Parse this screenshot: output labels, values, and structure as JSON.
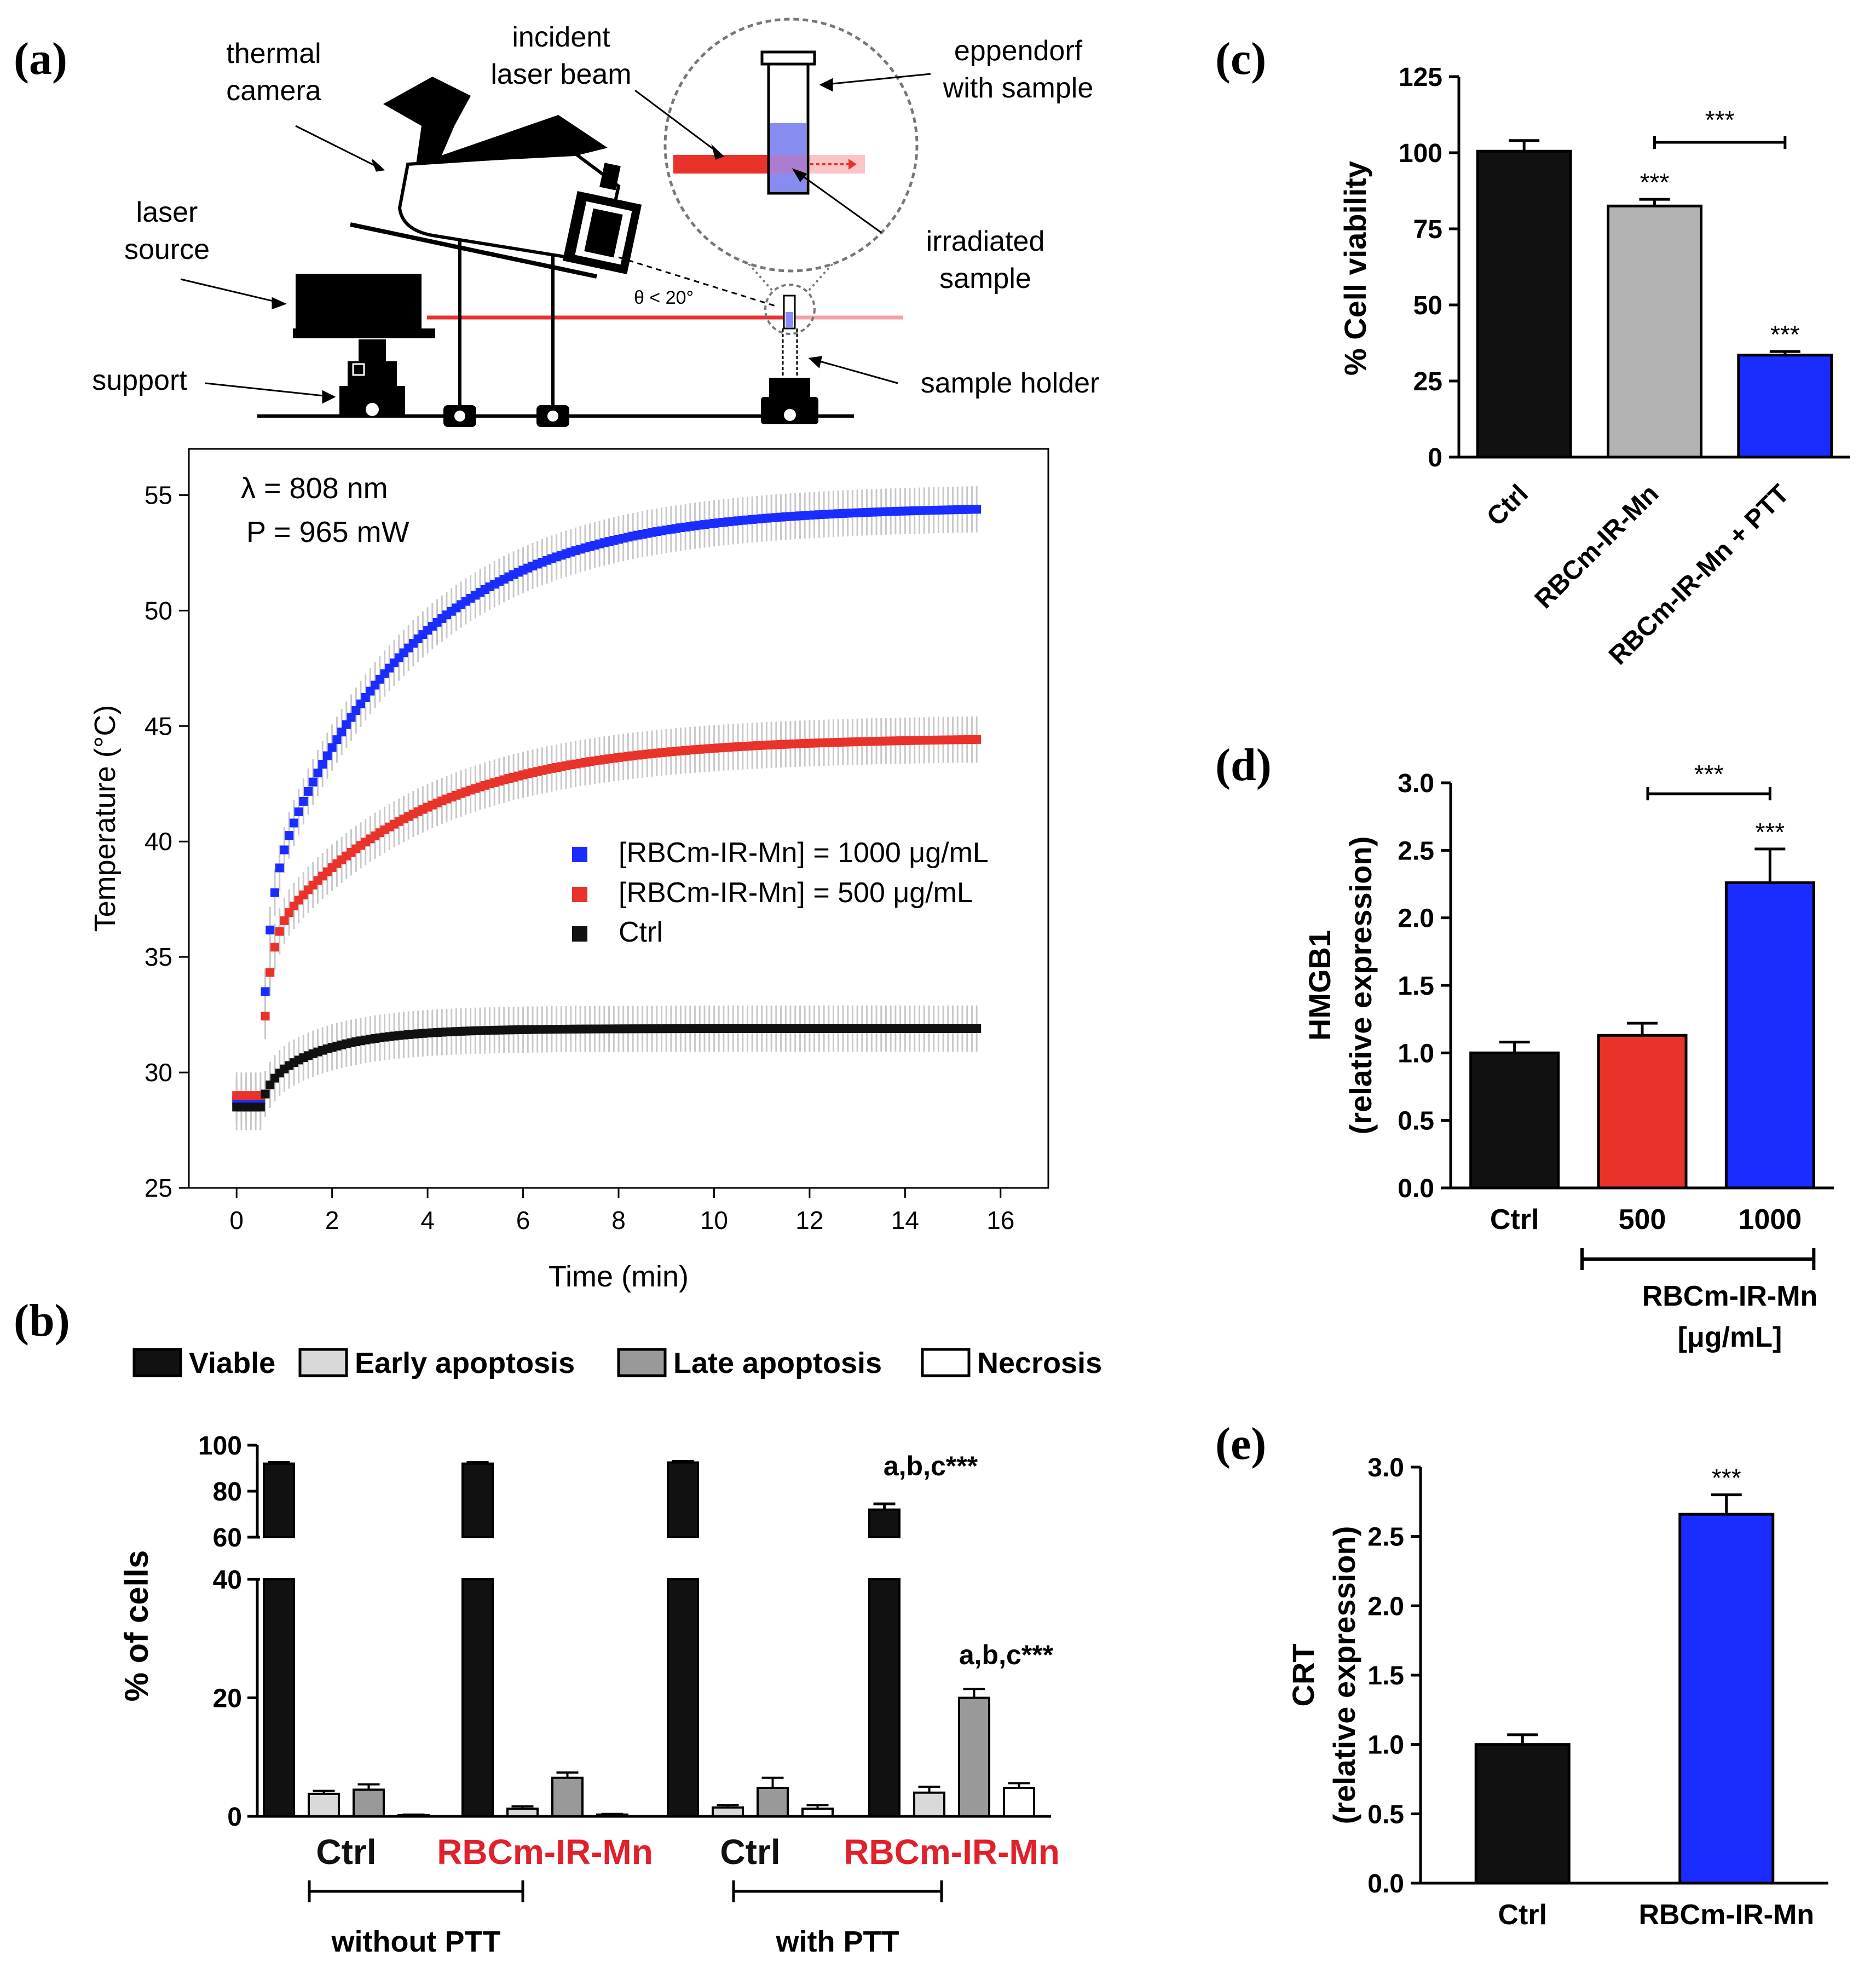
{
  "panels": {
    "a": {
      "label": "(a)",
      "setup": {
        "thermal_camera": [
          "thermal",
          "camera"
        ],
        "incident_laser_beam": [
          "incident",
          "laser beam"
        ],
        "eppendorf": [
          "eppendorf",
          "with sample"
        ],
        "laser_source": [
          "laser",
          "source"
        ],
        "irradiated_sample": [
          "irradiated",
          "sample"
        ],
        "support": "support",
        "sample_holder": "sample holder",
        "angle": "θ < 20°"
      },
      "wavelength": "λ = 808 nm",
      "power": "P = 965 mW"
    },
    "b": {
      "label": "(b)"
    },
    "c": {
      "label": "(c)"
    },
    "d": {
      "label": "(d)"
    },
    "e": {
      "label": "(e)"
    }
  },
  "colors": {
    "black": "#111111",
    "light_gray": "#d9d9d9",
    "mid_gray": "#999999",
    "gray_c": "#b3b3b3",
    "blue": "#1a2cff",
    "red": "#e8322a",
    "errbar": "#c8c8c8",
    "red_text": "#e0202a"
  },
  "chart_data": [
    {
      "id": "a",
      "type": "scatter",
      "xlabel": "Time (min)",
      "ylabel": "Temperature (°C)",
      "xlim": [
        -1,
        17
      ],
      "ylim": [
        25,
        57
      ],
      "xticks": [
        0,
        2,
        4,
        6,
        8,
        10,
        12,
        14,
        16
      ],
      "yticks": [
        25,
        30,
        35,
        40,
        45,
        50,
        55
      ],
      "series": [
        {
          "name": "[RBCm-IR-Mn] = 1000 μg/mL",
          "color": "#1a2cff",
          "baseline": 28.8,
          "plateau": 54.5,
          "tau": 3.0,
          "points": [
            [
              0,
              28.8
            ],
            [
              0.5,
              28.8
            ],
            [
              0.8,
              36.5
            ],
            [
              1,
              38.5
            ],
            [
              2,
              43.5
            ],
            [
              3,
              46.7
            ],
            [
              4,
              48.8
            ],
            [
              5,
              50.3
            ],
            [
              6,
              51.3
            ],
            [
              8,
              52.6
            ],
            [
              10,
              53.2
            ],
            [
              11,
              53.4
            ],
            [
              12,
              53.7
            ],
            [
              14,
              53.9
            ],
            [
              15.5,
              54.2
            ]
          ]
        },
        {
          "name": "[RBCm-IR-Mn] = 500 μg/mL",
          "color": "#e8322a",
          "baseline": 29.0,
          "plateau": 44.5,
          "tau": 3.2,
          "points": [
            [
              0,
              29.0
            ],
            [
              0.5,
              29.0
            ],
            [
              0.8,
              35.0
            ],
            [
              1,
              36.0
            ],
            [
              2,
              38.5
            ],
            [
              3,
              40.2
            ],
            [
              4,
              41.4
            ],
            [
              6,
              43.0
            ],
            [
              8,
              43.7
            ],
            [
              10,
              43.9
            ],
            [
              12,
              44.1
            ],
            [
              14,
              44.1
            ],
            [
              15.5,
              44.2
            ]
          ]
        },
        {
          "name": "Ctrl",
          "color": "#111111",
          "baseline": 28.5,
          "plateau": 31.9,
          "points": [
            [
              0,
              28.5
            ],
            [
              0.5,
              28.5
            ],
            [
              0.7,
              29.6
            ],
            [
              1,
              30.0
            ],
            [
              2,
              30.7
            ],
            [
              4,
              31.2
            ],
            [
              6,
              31.4
            ],
            [
              8,
              31.6
            ],
            [
              10,
              31.7
            ],
            [
              12,
              31.8
            ],
            [
              14,
              31.8
            ],
            [
              15.5,
              31.9
            ]
          ]
        }
      ]
    },
    {
      "id": "b",
      "type": "bar",
      "ylabel": "% of cells",
      "legend": [
        "Viable",
        "Early apoptosis",
        "Late apoptosis",
        "Necrosis"
      ],
      "ylim_lower": [
        0,
        40
      ],
      "ylim_upper": [
        60,
        100
      ],
      "yticks_lower": [
        0,
        20,
        40
      ],
      "yticks_upper": [
        60,
        80,
        100
      ],
      "groups": [
        {
          "label": "Ctrl",
          "label_color": "#111111",
          "values": [
            92,
            3.8,
            4.5,
            0.2
          ],
          "errors": [
            0.5,
            0.5,
            0.9,
            0.1
          ]
        },
        {
          "label": "RBCm-IR-Mn",
          "label_color": "#e0202a",
          "values": [
            92,
            1.3,
            6.5,
            0.3
          ],
          "errors": [
            0.5,
            0.4,
            0.9,
            0.1
          ]
        },
        {
          "label": "Ctrl",
          "label_color": "#111111",
          "values": [
            92.5,
            1.5,
            4.8,
            1.3
          ],
          "errors": [
            0.5,
            0.4,
            1.7,
            0.6
          ]
        },
        {
          "label": "RBCm-IR-Mn",
          "label_color": "#e0202a",
          "values": [
            72,
            4.0,
            20,
            4.8
          ],
          "errors": [
            2.5,
            1.0,
            1.5,
            0.8
          ]
        }
      ],
      "brackets": [
        "without PTT",
        "with PTT"
      ],
      "annotations": [
        "a,b,c***",
        "a,b,c***"
      ]
    },
    {
      "id": "c",
      "type": "bar",
      "ylabel": "% Cell viability",
      "ylim": [
        0,
        125
      ],
      "yticks": [
        0,
        25,
        50,
        75,
        100,
        125
      ],
      "categories": [
        "Ctrl",
        "RBCm-IR-Mn",
        "RBCm-IR-Mn + PTT"
      ],
      "values": [
        100.5,
        82.5,
        33.5
      ],
      "errors": [
        3.5,
        2.2,
        1.2
      ],
      "bar_colors": [
        "#111111",
        "#b3b3b3",
        "#1a2cff"
      ],
      "significance": [
        "",
        "***",
        "***"
      ],
      "bracket_label": "***"
    },
    {
      "id": "d",
      "type": "bar",
      "ylabel": [
        "HMGB1",
        "(relative expression)"
      ],
      "ylim": [
        0,
        3.0
      ],
      "yticks": [
        "0.0",
        "0.5",
        "1.0",
        "1.5",
        "2.0",
        "2.5",
        "3.0"
      ],
      "categories": [
        "Ctrl",
        "500",
        "1000"
      ],
      "values": [
        1.0,
        1.13,
        2.26
      ],
      "errors": [
        0.08,
        0.09,
        0.25
      ],
      "bar_colors": [
        "#111111",
        "#e8322a",
        "#1a2cff"
      ],
      "significance": [
        "",
        "",
        "***"
      ],
      "bracket_label": "***",
      "group_label": [
        "RBCm-IR-Mn",
        "[μg/mL]"
      ]
    },
    {
      "id": "e",
      "type": "bar",
      "ylabel": [
        "CRT",
        "(relative expression)"
      ],
      "ylim": [
        0,
        3.0
      ],
      "yticks": [
        "0.0",
        "0.5",
        "1.0",
        "1.5",
        "2.0",
        "2.5",
        "3.0"
      ],
      "categories": [
        "Ctrl",
        "RBCm-IR-Mn"
      ],
      "values": [
        1.0,
        2.66
      ],
      "errors": [
        0.07,
        0.14
      ],
      "bar_colors": [
        "#111111",
        "#1a2cff"
      ],
      "significance": [
        "",
        "***"
      ]
    }
  ]
}
